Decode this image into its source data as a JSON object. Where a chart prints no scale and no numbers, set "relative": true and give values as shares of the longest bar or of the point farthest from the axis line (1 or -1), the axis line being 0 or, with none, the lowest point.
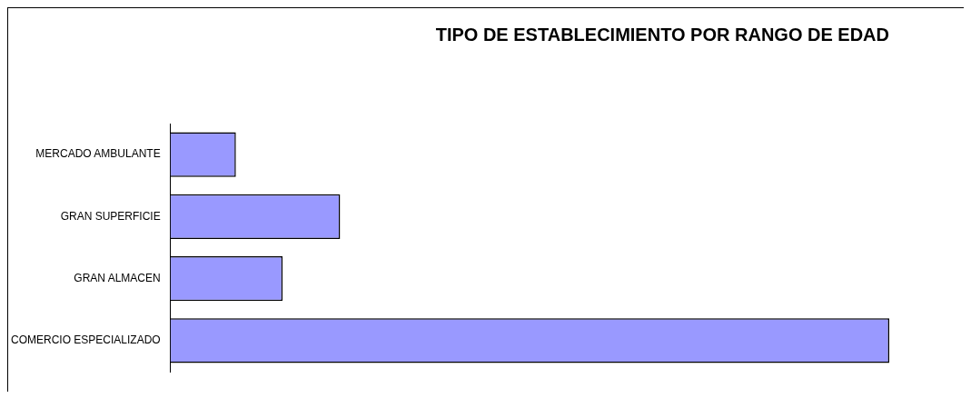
{
  "chart_data": {
    "type": "bar",
    "orientation": "horizontal",
    "relative": true,
    "title": "TIPO DE ESTABLECIMIENTO POR RANGO DE EDAD",
    "categories": [
      "MERCADO AMBULANTE",
      "GRAN SUPERFICIE",
      "GRAN ALMACEN",
      "COMERCIO ESPECIALIZADO"
    ],
    "values": [
      0.091,
      0.236,
      0.156,
      1
    ],
    "color": "#9999ff",
    "grid": false,
    "legend": false
  }
}
